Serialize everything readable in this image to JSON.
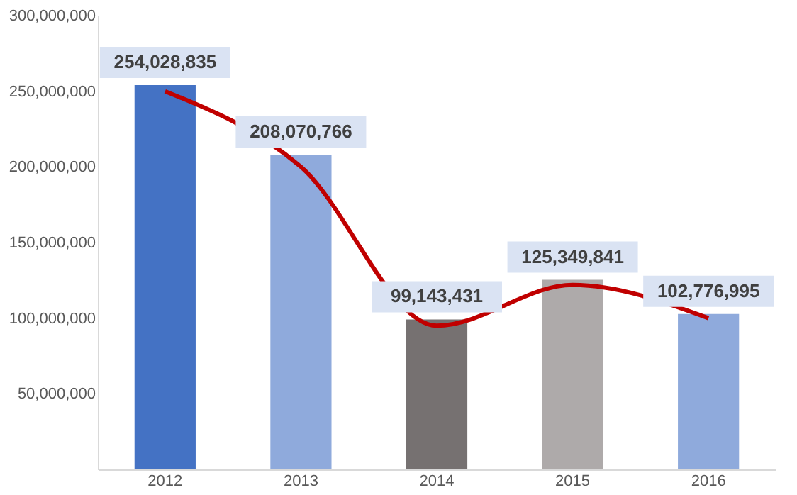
{
  "chart_data": {
    "type": "bar",
    "categories": [
      "2012",
      "2013",
      "2014",
      "2015",
      "2016"
    ],
    "series": [
      {
        "colors": [
          "#4472c4",
          "#8faadc",
          "#767171",
          "#aeaaaa",
          "#8faadc"
        ],
        "values": [
          254028835,
          208070766,
          99143431,
          125349841,
          102776995
        ],
        "value_labels": [
          "254,028,835",
          "208,070,766",
          "99,143,431",
          "125,349,841",
          "102,776,995"
        ]
      },
      {
        "type": "line",
        "color": "#c00000",
        "values": [
          250000000,
          200000000,
          95000000,
          122000000,
          100000000
        ]
      }
    ],
    "ylim": [
      0,
      300000000
    ],
    "yticks": [
      {
        "value": 50000000,
        "label": "50,000,000"
      },
      {
        "value": 100000000,
        "label": "100,000,000"
      },
      {
        "value": 150000000,
        "label": "150,000,000"
      },
      {
        "value": 200000000,
        "label": "200,000,000"
      },
      {
        "value": 250000000,
        "label": "250,000,000"
      },
      {
        "value": 300000000,
        "label": "300,000,000"
      }
    ],
    "grid": false
  }
}
